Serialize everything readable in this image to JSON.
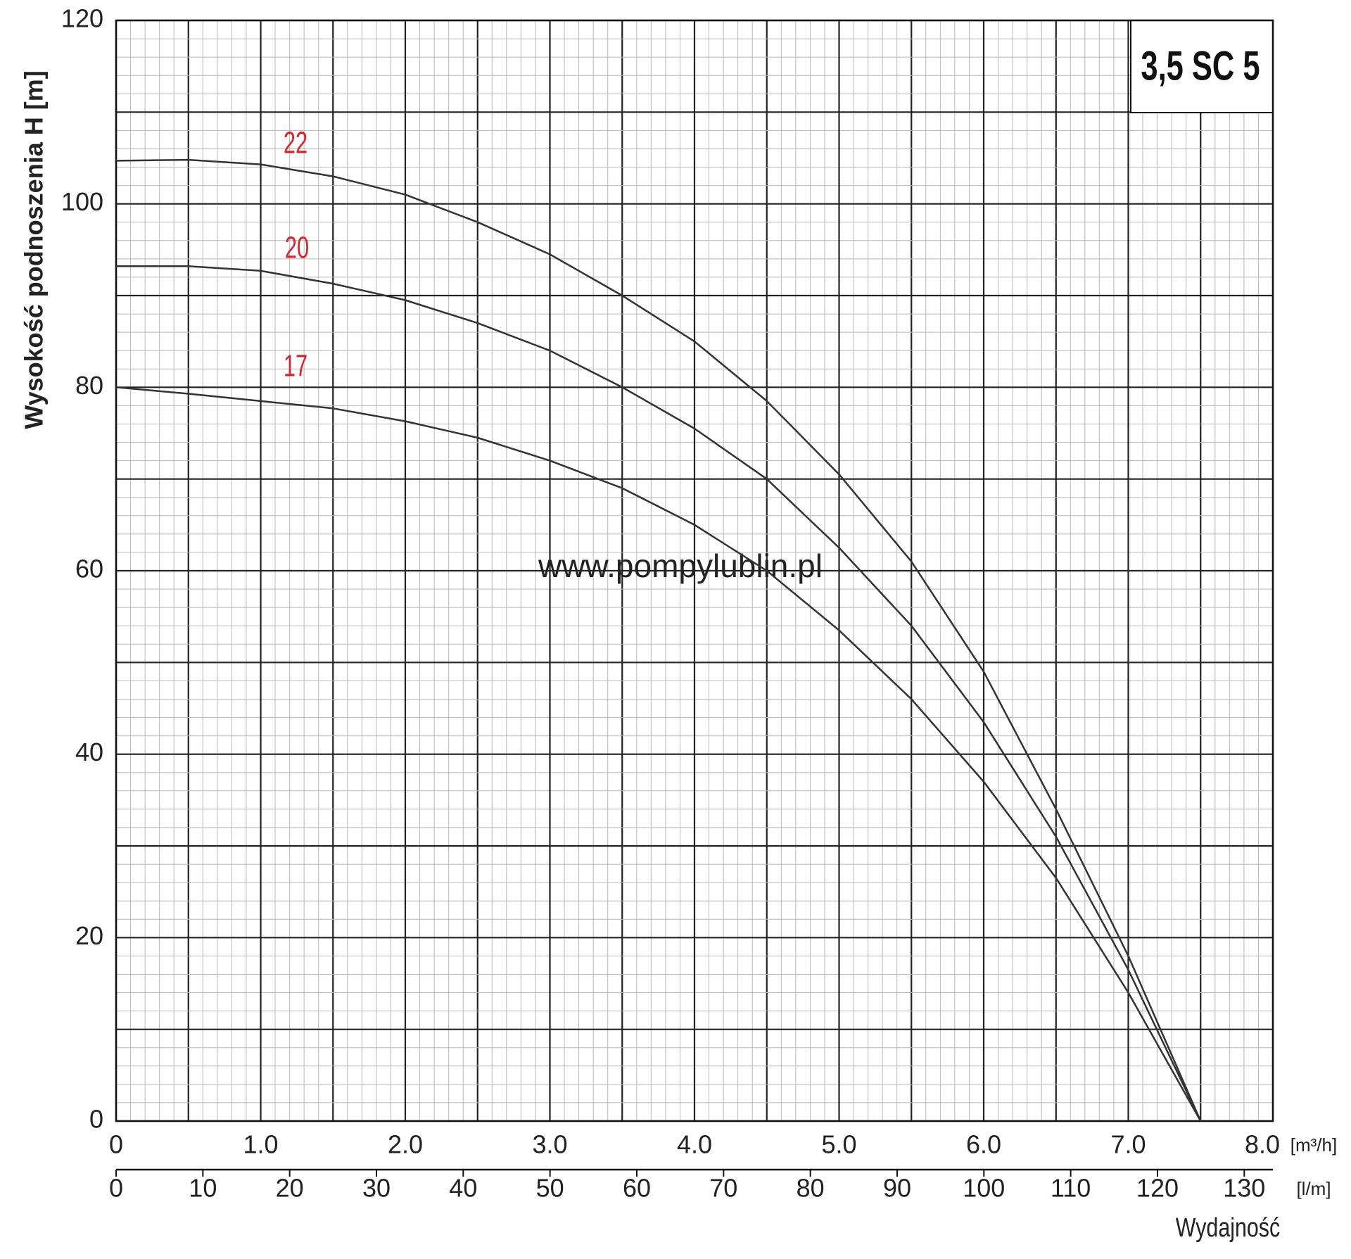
{
  "chart_data": {
    "type": "line",
    "title": "3,5 SC 5",
    "watermark": "www.pompylublin.pl",
    "y_label": "Wysokość podnoszenia H [m]",
    "x_label": "Wydajność",
    "x_unit": "[m³/h]",
    "x2_unit": "[l/m]",
    "x": [
      0,
      0.5,
      1.0,
      1.5,
      2.0,
      2.5,
      3.0,
      3.5,
      4.0,
      4.5,
      5.0,
      5.5,
      6.0,
      6.5,
      7.0,
      7.5
    ],
    "series": [
      {
        "name": "22",
        "color": "#333333",
        "values": [
          104.7,
          104.8,
          104.3,
          103,
          101,
          98,
          94.5,
          90,
          85,
          78.5,
          70.5,
          61,
          49,
          34,
          18,
          0
        ]
      },
      {
        "name": "20",
        "color": "#333333",
        "values": [
          93.2,
          93.2,
          92.7,
          91.3,
          89.5,
          87,
          84,
          80,
          75.5,
          70,
          62.5,
          54,
          43.5,
          31,
          16.5,
          0
        ]
      },
      {
        "name": "17",
        "color": "#333333",
        "values": [
          80,
          79.3,
          78.5,
          77.7,
          76.3,
          74.5,
          72,
          69,
          65,
          60,
          53.5,
          46,
          37,
          26.5,
          14,
          0
        ]
      }
    ],
    "label_color": "#d9262c",
    "xlim": [
      0,
      8.0
    ],
    "xticks": [
      0,
      {
        "value": 1,
        "label": "1.0"
      },
      {
        "value": 2,
        "label": "2.0"
      },
      {
        "value": 3,
        "label": "3.0"
      },
      {
        "value": 4,
        "label": "4.0"
      },
      {
        "value": 5,
        "label": "5.0"
      },
      {
        "value": 6,
        "label": "6.0"
      },
      {
        "value": 7,
        "label": "7.0"
      },
      {
        "value": 8,
        "label": "8.0"
      }
    ],
    "x2lim": [
      0,
      133.3
    ],
    "x2ticks": [
      0,
      10,
      20,
      30,
      40,
      50,
      60,
      70,
      80,
      90,
      100,
      110,
      120,
      130
    ],
    "ylim": [
      0,
      120
    ],
    "yticks": [
      0,
      20,
      40,
      60,
      80,
      100,
      120
    ],
    "grid": true
  }
}
